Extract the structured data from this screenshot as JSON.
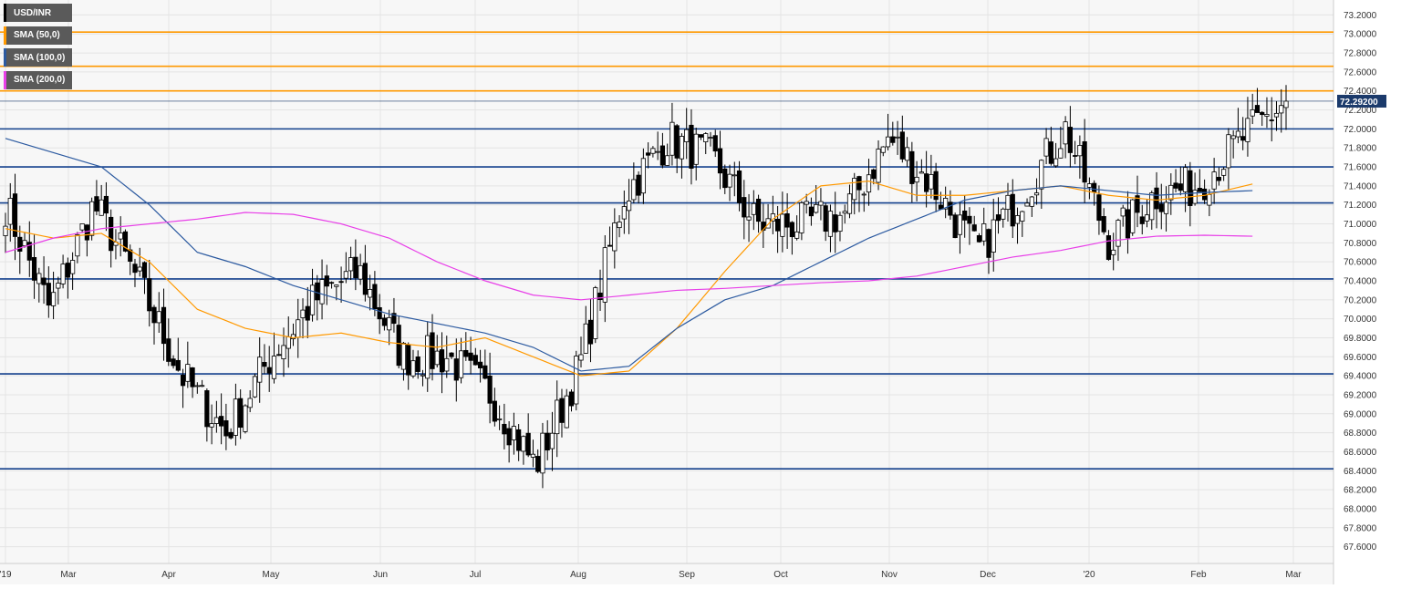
{
  "legend": [
    {
      "label": "USD/INR",
      "color": "#000000"
    },
    {
      "label": "SMA (50,0)",
      "color": "#ff9900"
    },
    {
      "label": "SMA (100,0)",
      "color": "#2c5aa0"
    },
    {
      "label": "SMA (200,0)",
      "color": "#e83fe8"
    }
  ],
  "price_tag": "72.29200",
  "chart_data": {
    "type": "candlestick",
    "symbol": "USD/INR",
    "timeframe": "daily",
    "ylim": [
      67.5,
      73.3
    ],
    "y_ticks": [
      "73.2000",
      "73.0000",
      "72.8000",
      "72.6000",
      "72.4000",
      "72.2000",
      "72.0000",
      "71.8000",
      "71.6000",
      "71.4000",
      "71.2000",
      "71.0000",
      "70.8000",
      "70.6000",
      "70.4000",
      "70.2000",
      "70.0000",
      "69.8000",
      "69.6000",
      "69.4000",
      "69.2000",
      "69.0000",
      "68.8000",
      "68.6000",
      "68.4000",
      "68.2000",
      "68.0000",
      "67.8000",
      "67.6000"
    ],
    "x_ticks": [
      "'19",
      "Mar",
      "Apr",
      "May",
      "Jun",
      "Jul",
      "Aug",
      "Sep",
      "Oct",
      "Nov",
      "Dec",
      "'20",
      "Feb",
      "Mar"
    ],
    "grid": true,
    "last_price": 72.292,
    "horizontal_levels": {
      "orange": [
        73.02,
        72.66,
        72.4
      ],
      "blue": [
        72.0,
        71.6,
        71.22,
        70.42,
        69.42,
        68.42
      ]
    },
    "ohlc_anchors": [
      {
        "date": "Jan 2019",
        "close": 71.2
      },
      {
        "date": "Jan 2019 low",
        "close": 70.1
      },
      {
        "date": "Feb 2019",
        "close": 71.2
      },
      {
        "date": "Mar 2019",
        "close": 70.4
      },
      {
        "date": "Mar 2019 end",
        "close": 69.4
      },
      {
        "date": "Apr 2019",
        "close": 68.8
      },
      {
        "date": "Apr 2019 mid",
        "close": 69.6
      },
      {
        "date": "May 2019",
        "close": 70.2
      },
      {
        "date": "May 2019 mid",
        "close": 70.5
      },
      {
        "date": "Jun 2019",
        "close": 69.6
      },
      {
        "date": "Jun 2019 mid",
        "close": 69.6
      },
      {
        "date": "Jul 2019",
        "close": 69.2
      },
      {
        "date": "Jul 2019 low",
        "close": 68.45
      },
      {
        "date": "Aug 2019",
        "close": 69.5
      },
      {
        "date": "Aug 2019 mid",
        "close": 71.3
      },
      {
        "date": "Sep 2019",
        "close": 71.9
      },
      {
        "date": "Sep 2019 mid",
        "close": 71.7
      },
      {
        "date": "Oct 2019",
        "close": 71.0
      },
      {
        "date": "Oct 2019 mid",
        "close": 71.0
      },
      {
        "date": "Nov 2019",
        "close": 71.1
      },
      {
        "date": "Nov 2019 high",
        "close": 71.9
      },
      {
        "date": "Dec 2019",
        "close": 71.4
      },
      {
        "date": "Dec 2019 low",
        "close": 70.7
      },
      {
        "date": "Jan 2020",
        "close": 71.3
      },
      {
        "date": "Jan 2020 high",
        "close": 72.0
      },
      {
        "date": "Jan 2020 low",
        "close": 70.8
      },
      {
        "date": "Feb 2020",
        "close": 71.3
      },
      {
        "date": "Feb 2020 mid",
        "close": 71.4
      },
      {
        "date": "Feb 2020 late",
        "close": 71.9
      },
      {
        "date": "Feb 2020 end",
        "close": 72.29
      }
    ],
    "sma": [
      {
        "name": "SMA (50,0)",
        "color": "#ff9900",
        "anchors": [
          [
            0,
            70.95
          ],
          [
            10,
            70.85
          ],
          [
            20,
            70.9
          ],
          [
            30,
            70.6
          ],
          [
            40,
            70.1
          ],
          [
            50,
            69.9
          ],
          [
            60,
            69.8
          ],
          [
            70,
            69.85
          ],
          [
            80,
            69.75
          ],
          [
            90,
            69.7
          ],
          [
            100,
            69.8
          ],
          [
            110,
            69.6
          ],
          [
            120,
            69.4
          ],
          [
            130,
            69.45
          ],
          [
            140,
            69.9
          ],
          [
            150,
            70.5
          ],
          [
            160,
            71.05
          ],
          [
            170,
            71.4
          ],
          [
            180,
            71.45
          ],
          [
            190,
            71.3
          ],
          [
            200,
            71.3
          ],
          [
            210,
            71.35
          ],
          [
            220,
            71.4
          ],
          [
            230,
            71.3
          ],
          [
            240,
            71.25
          ],
          [
            250,
            71.3
          ],
          [
            260,
            71.42
          ]
        ]
      },
      {
        "name": "SMA (100,0)",
        "color": "#2c5aa0",
        "anchors": [
          [
            0,
            71.9
          ],
          [
            10,
            71.75
          ],
          [
            20,
            71.6
          ],
          [
            30,
            71.2
          ],
          [
            40,
            70.7
          ],
          [
            50,
            70.55
          ],
          [
            60,
            70.35
          ],
          [
            70,
            70.2
          ],
          [
            80,
            70.05
          ],
          [
            90,
            69.95
          ],
          [
            100,
            69.85
          ],
          [
            110,
            69.7
          ],
          [
            120,
            69.45
          ],
          [
            130,
            69.5
          ],
          [
            140,
            69.9
          ],
          [
            150,
            70.2
          ],
          [
            160,
            70.35
          ],
          [
            170,
            70.6
          ],
          [
            180,
            70.85
          ],
          [
            190,
            71.05
          ],
          [
            200,
            71.25
          ],
          [
            210,
            71.35
          ],
          [
            220,
            71.4
          ],
          [
            230,
            71.35
          ],
          [
            240,
            71.3
          ],
          [
            250,
            71.33
          ],
          [
            260,
            71.35
          ]
        ]
      },
      {
        "name": "SMA (200,0)",
        "color": "#e83fe8",
        "anchors": [
          [
            0,
            70.7
          ],
          [
            10,
            70.85
          ],
          [
            20,
            70.95
          ],
          [
            30,
            71.0
          ],
          [
            40,
            71.05
          ],
          [
            50,
            71.12
          ],
          [
            60,
            71.1
          ],
          [
            70,
            71.0
          ],
          [
            80,
            70.85
          ],
          [
            90,
            70.6
          ],
          [
            100,
            70.4
          ],
          [
            110,
            70.25
          ],
          [
            120,
            70.2
          ],
          [
            130,
            70.25
          ],
          [
            140,
            70.3
          ],
          [
            150,
            70.32
          ],
          [
            160,
            70.35
          ],
          [
            170,
            70.38
          ],
          [
            180,
            70.4
          ],
          [
            190,
            70.45
          ],
          [
            200,
            70.55
          ],
          [
            210,
            70.65
          ],
          [
            220,
            70.72
          ],
          [
            230,
            70.82
          ],
          [
            240,
            70.87
          ],
          [
            250,
            70.88
          ],
          [
            260,
            70.87
          ]
        ]
      }
    ]
  }
}
